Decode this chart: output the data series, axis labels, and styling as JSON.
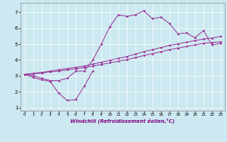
{
  "xlabel": "Windchill (Refroidissement éolien,°C)",
  "bg_color": "#cce8f0",
  "line_color": "#993399",
  "xlim": [
    -0.5,
    23.5
  ],
  "ylim": [
    0.8,
    7.6
  ],
  "yticks": [
    1,
    2,
    3,
    4,
    5,
    6,
    7
  ],
  "xticks": [
    0,
    1,
    2,
    3,
    4,
    5,
    6,
    7,
    8,
    9,
    10,
    11,
    12,
    13,
    14,
    15,
    16,
    17,
    18,
    19,
    20,
    21,
    22,
    23
  ],
  "series1_x": [
    0,
    1,
    2,
    3,
    4,
    5,
    6,
    7,
    8,
    9,
    10,
    11,
    12,
    13,
    14,
    15,
    16,
    17,
    18,
    19,
    20,
    21,
    22,
    23
  ],
  "series1_y": [
    3.1,
    3.0,
    2.85,
    2.7,
    2.7,
    2.85,
    3.3,
    3.3,
    4.0,
    5.0,
    6.1,
    6.85,
    6.75,
    6.85,
    7.1,
    6.6,
    6.7,
    6.3,
    5.65,
    5.7,
    5.4,
    5.85,
    4.95,
    5.05
  ],
  "series2_x": [
    0,
    1,
    2,
    3,
    4,
    5,
    6,
    7,
    8
  ],
  "series2_y": [
    3.1,
    2.9,
    2.75,
    2.65,
    1.9,
    1.45,
    1.5,
    2.35,
    3.3
  ],
  "series3_x": [
    0,
    1,
    2,
    3,
    4,
    5,
    6,
    7,
    8,
    9,
    10,
    11,
    12,
    13,
    14,
    15,
    16,
    17,
    18,
    19,
    20,
    21,
    22,
    23
  ],
  "series3_y": [
    3.1,
    3.12,
    3.18,
    3.25,
    3.3,
    3.38,
    3.45,
    3.52,
    3.62,
    3.72,
    3.82,
    3.92,
    4.02,
    4.15,
    4.28,
    4.4,
    4.52,
    4.65,
    4.75,
    4.85,
    4.95,
    5.05,
    5.1,
    5.15
  ],
  "series4_x": [
    0,
    1,
    2,
    3,
    4,
    5,
    6,
    7,
    8,
    9,
    10,
    11,
    12,
    13,
    14,
    15,
    16,
    17,
    18,
    19,
    20,
    21,
    22,
    23
  ],
  "series4_y": [
    3.1,
    3.15,
    3.22,
    3.3,
    3.38,
    3.46,
    3.54,
    3.62,
    3.74,
    3.86,
    3.98,
    4.1,
    4.22,
    4.37,
    4.52,
    4.65,
    4.78,
    4.92,
    5.02,
    5.12,
    5.22,
    5.32,
    5.38,
    5.48
  ]
}
